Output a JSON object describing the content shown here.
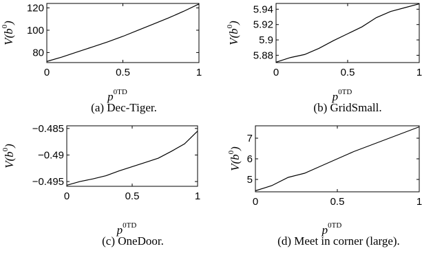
{
  "chart_data": [
    {
      "type": "line",
      "caption": "(a) Dec-Tiger.",
      "xlabel": {
        "base": "p",
        "sup": "0TD"
      },
      "ylabel": {
        "prefix": "V(b",
        "sup": "0",
        "suffix": ")"
      },
      "xlim": [
        0,
        1
      ],
      "ylim": [
        71,
        124
      ],
      "xticks": [
        0,
        0.5,
        1
      ],
      "xtick_labels": [
        "0",
        "0.5",
        "1"
      ],
      "yticks": [
        80,
        100,
        120
      ],
      "ytick_labels": [
        "80",
        "100",
        "120"
      ],
      "series": [
        {
          "x": [
            0,
            0.1,
            0.2,
            0.3,
            0.4,
            0.5,
            0.6,
            0.7,
            0.8,
            0.9,
            1.0
          ],
          "y": [
            72,
            76,
            80.5,
            85,
            89.5,
            94.5,
            100,
            105.5,
            111,
            117,
            123.5
          ]
        }
      ]
    },
    {
      "type": "line",
      "caption": "(b) GridSmall.",
      "xlabel": {
        "base": "p",
        "sup": "0TD"
      },
      "ylabel": {
        "prefix": "V(b",
        "sup": "0",
        "suffix": ")"
      },
      "xlim": [
        0,
        1
      ],
      "ylim": [
        5.8705,
        5.9475
      ],
      "xticks": [
        0,
        0.5,
        1
      ],
      "xtick_labels": [
        "0",
        "0.5",
        "1"
      ],
      "yticks": [
        5.88,
        5.9,
        5.92,
        5.94
      ],
      "ytick_labels": [
        "5.88",
        "5.9",
        "5.92",
        "5.94"
      ],
      "series": [
        {
          "x": [
            0,
            0.1,
            0.2,
            0.3,
            0.4,
            0.5,
            0.6,
            0.7,
            0.8,
            0.9,
            1.0
          ],
          "y": [
            5.871,
            5.877,
            5.881,
            5.889,
            5.899,
            5.908,
            5.917,
            5.929,
            5.937,
            5.942,
            5.947
          ]
        }
      ]
    },
    {
      "type": "line",
      "caption": "(c) OneDoor.",
      "xlabel": {
        "base": "p",
        "sup": "0TD"
      },
      "ylabel": {
        "prefix": "V(b",
        "sup": "0",
        "suffix": ")"
      },
      "xlim": [
        0,
        1
      ],
      "ylim": [
        -0.4959,
        -0.4845
      ],
      "xticks": [
        0,
        0.5,
        1
      ],
      "xtick_labels": [
        "0",
        "0.5",
        "1"
      ],
      "yticks": [
        -0.495,
        -0.49,
        -0.485
      ],
      "ytick_labels": [
        "−0.495",
        "−0.49",
        "−0.485"
      ],
      "series": [
        {
          "x": [
            0,
            0.1,
            0.2,
            0.3,
            0.4,
            0.5,
            0.6,
            0.7,
            0.8,
            0.9,
            1.0
          ],
          "y": [
            -0.4957,
            -0.495,
            -0.4945,
            -0.4939,
            -0.493,
            -0.4922,
            -0.4914,
            -0.4906,
            -0.4893,
            -0.4879,
            -0.4855
          ]
        }
      ]
    },
    {
      "type": "line",
      "caption": "(d) Meet in corner (large).",
      "xlabel": {
        "base": "p",
        "sup": "0TD"
      },
      "ylabel": {
        "prefix": "V(b",
        "sup": "0",
        "suffix": ")"
      },
      "xlim": [
        0,
        1
      ],
      "ylim": [
        4.4,
        7.6
      ],
      "xticks": [
        0,
        0.5,
        1
      ],
      "xtick_labels": [
        "0",
        "0.5",
        "1"
      ],
      "yticks": [
        5,
        6,
        7
      ],
      "ytick_labels": [
        "5",
        "6",
        "7"
      ],
      "series": [
        {
          "x": [
            0,
            0.1,
            0.2,
            0.3,
            0.4,
            0.5,
            0.6,
            0.7,
            0.8,
            0.9,
            1.0
          ],
          "y": [
            4.45,
            4.7,
            5.1,
            5.3,
            5.65,
            6.0,
            6.35,
            6.65,
            6.95,
            7.25,
            7.55
          ]
        }
      ]
    }
  ]
}
